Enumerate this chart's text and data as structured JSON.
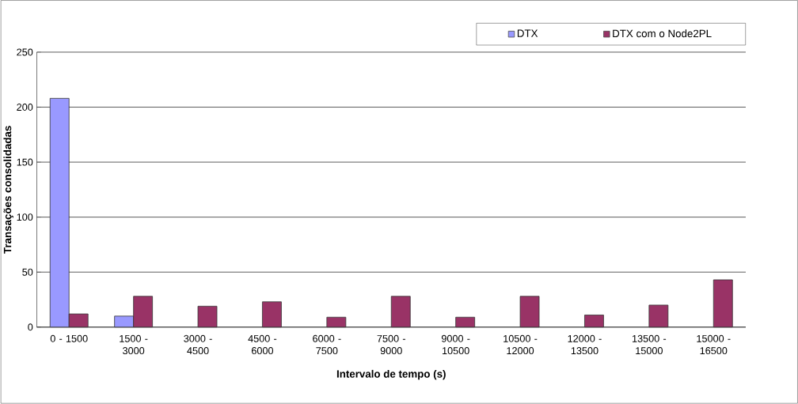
{
  "chart_data": {
    "type": "bar",
    "xlabel": "Intervalo de tempo (s)",
    "ylabel": "Transações consolidadas",
    "categories": [
      "0 - 1500",
      "1500 - 3000",
      "3000 - 4500",
      "4500 - 6000",
      "6000 - 7500",
      "7500 - 9000",
      "9000 - 10500",
      "10500 - 12000",
      "12000 - 13500",
      "13500 - 15000",
      "15000 - 16500"
    ],
    "series": [
      {
        "name": "DTX",
        "color": "#9999ff",
        "values": [
          208,
          10,
          0,
          0,
          0,
          0,
          0,
          0,
          0,
          0,
          0
        ]
      },
      {
        "name": "DTX com o Node2PL",
        "color": "#993366",
        "values": [
          12,
          28,
          19,
          23,
          9,
          28,
          9,
          28,
          11,
          20,
          43
        ]
      }
    ],
    "ylim": [
      0,
      250
    ],
    "yticks": [
      0,
      50,
      100,
      150,
      200,
      250
    ],
    "grid": "y",
    "legend": "top right"
  }
}
